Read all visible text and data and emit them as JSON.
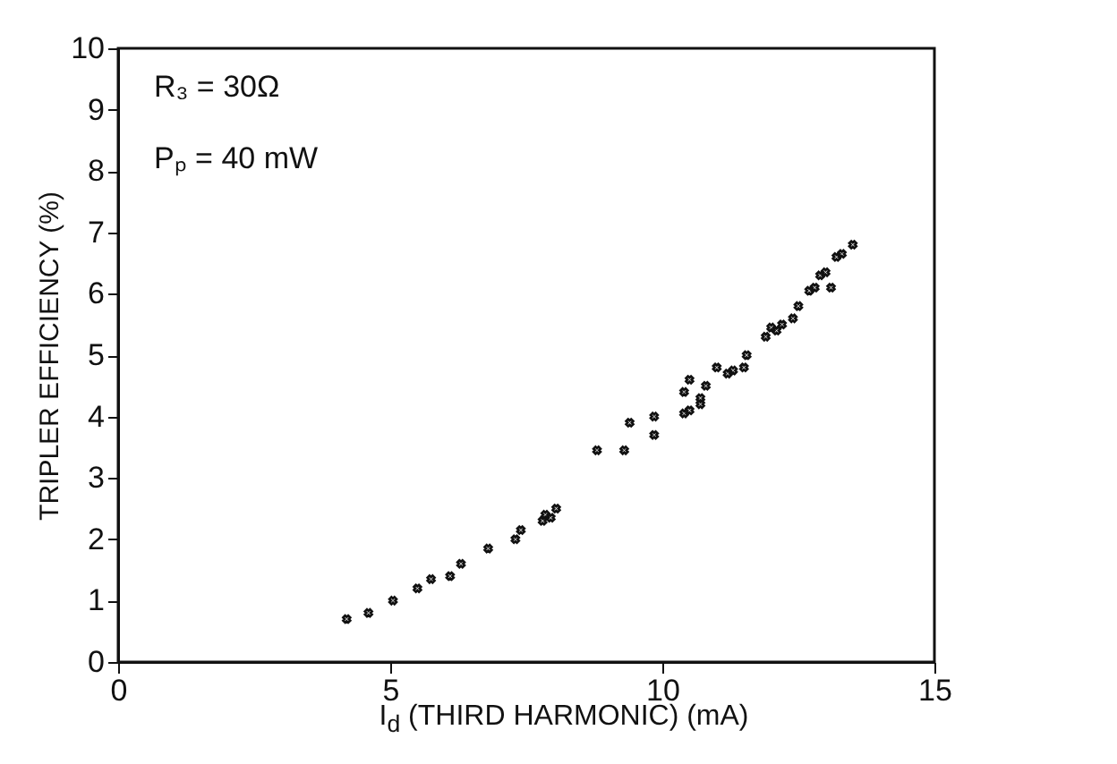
{
  "chart_data": {
    "type": "scatter",
    "xlabel": "I$_{d}$ (THIRD HARMONIC) (mA)",
    "ylabel": "TRIPLER EFFICIENCY (%)",
    "annotations": [
      "R₃ = 30Ω",
      "Pₚ = 40 mW"
    ],
    "xlim": [
      0,
      15
    ],
    "xticks": [
      0,
      5,
      10,
      15
    ],
    "ylim": [
      0,
      10
    ],
    "yticks": [
      0,
      1,
      2,
      3,
      4,
      5,
      6,
      7,
      8,
      9,
      10
    ],
    "grid": false,
    "marker": "cross",
    "series": [
      {
        "color": "#111111",
        "x": [
          4.2,
          4.6,
          5.05,
          5.5,
          5.75,
          6.1,
          6.3,
          6.8,
          7.3,
          7.4,
          7.8,
          7.85,
          7.95,
          8.05,
          8.8,
          9.3,
          9.4,
          9.85,
          9.85,
          10.4,
          10.5,
          10.4,
          10.5,
          10.7,
          10.7,
          10.8,
          11.0,
          11.2,
          11.3,
          11.5,
          11.55,
          11.9,
          12.0,
          12.1,
          12.2,
          12.4,
          12.5,
          12.7,
          12.8,
          12.9,
          13.0,
          13.1,
          13.2,
          13.3,
          13.5
        ],
        "values": [
          0.7,
          0.8,
          1.0,
          1.2,
          1.35,
          1.4,
          1.6,
          1.85,
          2.0,
          2.15,
          2.3,
          2.4,
          2.35,
          2.5,
          3.45,
          3.45,
          3.9,
          3.7,
          4.0,
          4.05,
          4.1,
          4.4,
          4.6,
          4.2,
          4.3,
          4.5,
          4.8,
          4.7,
          4.75,
          4.8,
          5.0,
          5.3,
          5.45,
          5.4,
          5.5,
          5.6,
          5.8,
          6.05,
          6.1,
          6.3,
          6.35,
          6.1,
          6.6,
          6.65,
          6.8
        ]
      }
    ]
  }
}
